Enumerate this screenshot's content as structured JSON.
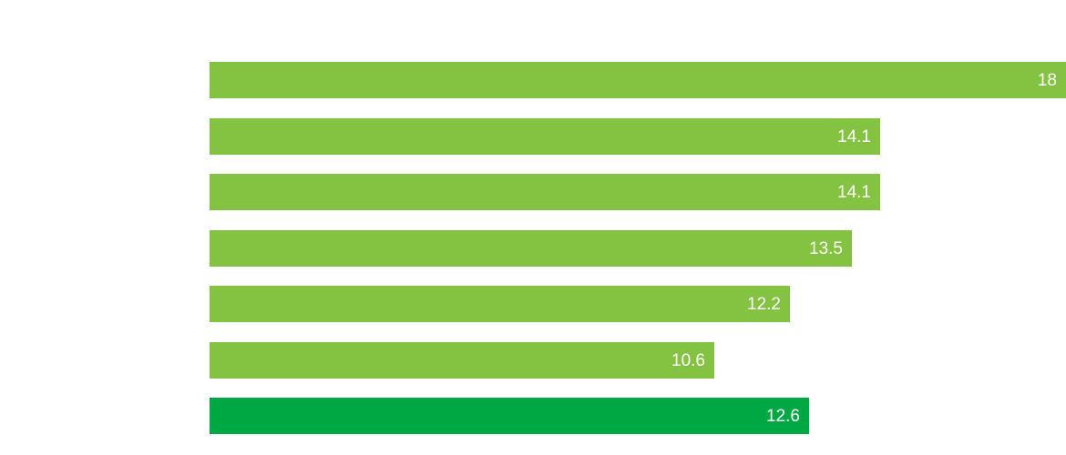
{
  "chart_data": {
    "type": "bar",
    "orientation": "horizontal",
    "title": "",
    "xlabel": "",
    "ylabel": "",
    "xlim": [
      0,
      18
    ],
    "grid": false,
    "axes_visible": false,
    "legend": "none",
    "value_label_position": "inside-end",
    "values": [
      18,
      14.1,
      14.1,
      13.5,
      12.2,
      10.6,
      12.6
    ],
    "labels": [
      "18",
      "14.1",
      "14.1",
      "13.5",
      "12.2",
      "10.6",
      "12.6"
    ],
    "bar_colors": [
      "#84C341",
      "#84C341",
      "#84C341",
      "#84C341",
      "#84C341",
      "#84C341",
      "#00A843"
    ],
    "colors": {
      "default_bar": "#84C341",
      "highlight_bar": "#00A843",
      "label_text": "#FFFFFF",
      "background": "#FFFFFF"
    },
    "highlighted_index": 6
  }
}
